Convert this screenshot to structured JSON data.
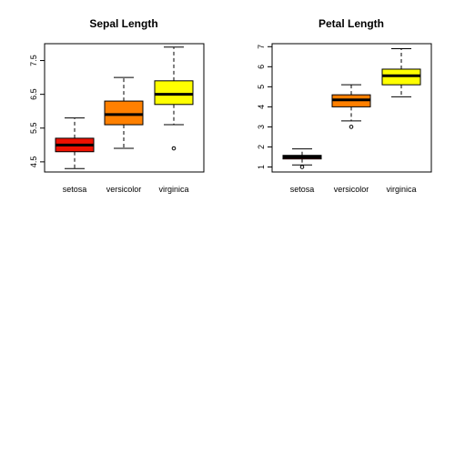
{
  "chart_data": [
    {
      "type": "boxplot",
      "title": "Sepal Length",
      "xlabel": "",
      "ylabel": "",
      "categories": [
        "setosa",
        "versicolor",
        "virginica"
      ],
      "ylim": [
        4.2,
        8.0
      ],
      "yticks": [
        4.5,
        5.5,
        6.5,
        7.5
      ],
      "ytick_labels": [
        "4.5",
        "5.5",
        "6.5",
        "7.5"
      ],
      "boxes": [
        {
          "category": "setosa",
          "min": 4.3,
          "q1": 4.8,
          "median": 5.0,
          "q3": 5.2,
          "max": 5.8,
          "outliers": [],
          "color": "#ee1100"
        },
        {
          "category": "versicolor",
          "min": 4.9,
          "q1": 5.6,
          "median": 5.9,
          "q3": 6.3,
          "max": 7.0,
          "outliers": [],
          "color": "#ff8000"
        },
        {
          "category": "virginica",
          "min": 5.6,
          "q1": 6.2,
          "median": 6.5,
          "q3": 6.9,
          "max": 7.9,
          "outliers": [
            4.9
          ],
          "color": "#ffff00"
        }
      ]
    },
    {
      "type": "boxplot",
      "title": "Petal Length",
      "xlabel": "",
      "ylabel": "",
      "categories": [
        "setosa",
        "versicolor",
        "virginica"
      ],
      "ylim": [
        0.75,
        7.15
      ],
      "yticks": [
        1,
        2,
        3,
        4,
        5,
        6,
        7
      ],
      "ytick_labels": [
        "1",
        "2",
        "3",
        "4",
        "5",
        "6",
        "7"
      ],
      "boxes": [
        {
          "category": "setosa",
          "min": 1.1,
          "q1": 1.4,
          "median": 1.5,
          "q3": 1.58,
          "max": 1.9,
          "outliers": [
            1.0
          ],
          "color": "#ee1100"
        },
        {
          "category": "versicolor",
          "min": 3.3,
          "q1": 4.0,
          "median": 4.35,
          "q3": 4.6,
          "max": 5.1,
          "outliers": [
            3.0
          ],
          "color": "#ff8000"
        },
        {
          "category": "virginica",
          "min": 4.5,
          "q1": 5.1,
          "median": 5.55,
          "q3": 5.88,
          "max": 6.9,
          "outliers": [],
          "color": "#ffff00"
        }
      ]
    }
  ]
}
